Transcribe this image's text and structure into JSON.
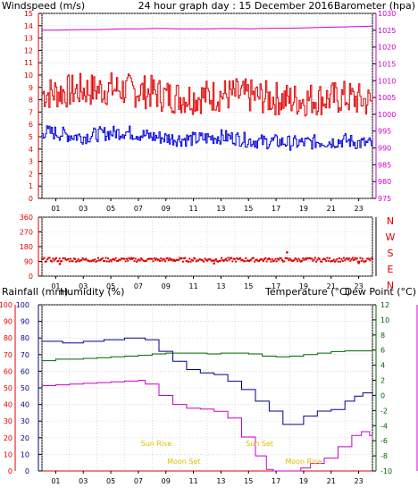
{
  "header": {
    "left_label": "Windspeed (m/s)",
    "center_label": "24 hour graph day : 15 December 2016",
    "right_label": "Barometer (hpa)"
  },
  "bottom_labels": {
    "rainfall": "Rainfall (mm)",
    "humidity": "Humidity (%)",
    "temperature": "Temperature (°C)",
    "dewpoint": "Dew Point (°C)"
  },
  "direction_letters": [
    "N",
    "W",
    "S",
    "E",
    "N"
  ],
  "events": [
    {
      "label": "Sun Rise",
      "hour": 8.3,
      "level": "upper"
    },
    {
      "label": "Sun Set",
      "hour": 15.8,
      "level": "upper"
    },
    {
      "label": "Moon Set",
      "hour": 10.3,
      "level": "lower"
    },
    {
      "label": "Moon Rise",
      "hour": 19.0,
      "level": "lower"
    }
  ],
  "colors": {
    "wind": "#e00000",
    "gust": "#e00000",
    "wind_avg": "#0000dd",
    "barometer": "#cc00cc",
    "direction": "#e00000",
    "rain": "#e00000",
    "humidity": "#00008b",
    "temperature": "#006400",
    "dewpoint": "#cc00cc",
    "events": "#e0c000",
    "axis": "#000000",
    "grid": "#c8c8c8"
  },
  "chart_data": [
    {
      "type": "line",
      "name": "wind-chart",
      "x_ticks": [
        "01",
        "03",
        "05",
        "07",
        "09",
        "11",
        "13",
        "15",
        "17",
        "19",
        "21",
        "23"
      ],
      "ylim_left": [
        0,
        15
      ],
      "yticks_left": [
        0,
        1,
        2,
        3,
        4,
        5,
        6,
        7,
        8,
        9,
        10,
        11,
        12,
        13,
        14,
        15
      ],
      "ylim_right": [
        975,
        1030
      ],
      "yticks_right": [
        975,
        980,
        985,
        990,
        995,
        1000,
        1005,
        1010,
        1015,
        1020,
        1025,
        1030
      ],
      "grid": true,
      "series": [
        {
          "axis": "left",
          "noisy": true,
          "base": [
            8.5,
            8.6,
            8.7,
            8.8,
            8.8,
            8.9,
            8.8,
            8.7,
            8.6,
            8.3,
            8.2,
            8.2,
            8.3,
            8.4,
            8.4,
            8.3,
            8.2,
            8.1,
            8.0,
            8.0,
            8.1,
            8.1,
            8.2,
            8.0,
            7.8
          ],
          "spread": 1.4
        },
        {
          "axis": "left",
          "noisy": true,
          "base": [
            5.4,
            5.3,
            5.1,
            5.0,
            5.2,
            5.3,
            5.4,
            5.2,
            5.0,
            4.9,
            4.8,
            4.8,
            4.9,
            5.0,
            4.9,
            4.7,
            4.6,
            4.6,
            4.5,
            4.5,
            4.6,
            4.6,
            4.7,
            4.5,
            4.4
          ],
          "spread": 0.6
        },
        {
          "axis": "right",
          "noisy": false,
          "base": [
            1025.0,
            1025.0,
            1025.1,
            1025.2,
            1025.2,
            1025.3,
            1025.4,
            1025.4,
            1025.5,
            1025.5,
            1025.4,
            1025.4,
            1025.4,
            1025.5,
            1025.5,
            1025.4,
            1025.5,
            1025.6,
            1025.6,
            1025.7,
            1025.8,
            1025.9,
            1026.0,
            1026.1,
            1026.2
          ],
          "spread": 0.1
        }
      ]
    },
    {
      "type": "scatter",
      "name": "direction-chart",
      "x_ticks": [
        "01",
        "03",
        "05",
        "07",
        "09",
        "11",
        "13",
        "15",
        "17",
        "19",
        "21",
        "23"
      ],
      "ylim": [
        0,
        360
      ],
      "yticks": [
        0,
        90,
        180,
        270,
        360
      ],
      "grid": true,
      "series": [
        {
          "base": 100,
          "spread": 12,
          "outliers": [
            {
              "hour": 1.3,
              "value": 75
            },
            {
              "hour": 12.5,
              "value": 78
            },
            {
              "hour": 17.8,
              "value": 145
            },
            {
              "hour": 23.0,
              "value": 80
            }
          ]
        }
      ]
    },
    {
      "type": "line",
      "name": "rain-humidity-temp-chart",
      "x_ticks": [
        "01",
        "03",
        "05",
        "07",
        "09",
        "11",
        "13",
        "15",
        "17",
        "19",
        "21",
        "23"
      ],
      "ylim_left": [
        0,
        100
      ],
      "yticks_left": [
        0,
        10,
        20,
        30,
        40,
        50,
        60,
        70,
        80,
        90,
        100
      ],
      "ylim_right": [
        -10,
        12
      ],
      "yticks_right": [
        -10,
        -8,
        -6,
        -4,
        -2,
        0,
        2,
        4,
        6,
        8,
        10,
        12
      ],
      "grid": true,
      "series": [
        {
          "axis": "left",
          "points": [
            [
              0,
              0
            ],
            [
              24,
              0
            ]
          ]
        },
        {
          "axis": "left",
          "points": [
            [
              0,
              78
            ],
            [
              1.5,
              77
            ],
            [
              3,
              78
            ],
            [
              4.5,
              79
            ],
            [
              6,
              80
            ],
            [
              7,
              80
            ],
            [
              7.5,
              79
            ],
            [
              8.5,
              72
            ],
            [
              9.5,
              66
            ],
            [
              10.5,
              61
            ],
            [
              11.5,
              59
            ],
            [
              12.5,
              58
            ],
            [
              13.5,
              54
            ],
            [
              14.5,
              49
            ],
            [
              15.5,
              42
            ],
            [
              16.5,
              36
            ],
            [
              17.5,
              28
            ],
            [
              18.2,
              28
            ],
            [
              19,
              33
            ],
            [
              20,
              36
            ],
            [
              21,
              37
            ],
            [
              22,
              42
            ],
            [
              22.7,
              45
            ],
            [
              23.3,
              47
            ],
            [
              24,
              43
            ]
          ]
        },
        {
          "axis": "right",
          "points": [
            [
              0,
              4.6
            ],
            [
              1,
              4.8
            ],
            [
              2,
              4.8
            ],
            [
              3,
              4.9
            ],
            [
              4,
              5.0
            ],
            [
              5,
              5.1
            ],
            [
              6,
              5.2
            ],
            [
              7,
              5.3
            ],
            [
              8,
              5.5
            ],
            [
              9,
              5.6
            ],
            [
              10,
              5.6
            ],
            [
              11,
              5.6
            ],
            [
              12,
              5.5
            ],
            [
              13,
              5.6
            ],
            [
              14,
              5.6
            ],
            [
              15,
              5.5
            ],
            [
              16,
              5.2
            ],
            [
              17,
              5.1
            ],
            [
              18,
              5.2
            ],
            [
              19,
              5.4
            ],
            [
              20,
              5.6
            ],
            [
              21,
              5.8
            ],
            [
              22,
              5.9
            ],
            [
              23,
              5.9
            ],
            [
              24,
              5.6
            ]
          ]
        },
        {
          "axis": "right",
          "points": [
            [
              0,
              1.3
            ],
            [
              1,
              1.4
            ],
            [
              2,
              1.5
            ],
            [
              3,
              1.6
            ],
            [
              4,
              1.7
            ],
            [
              5,
              1.8
            ],
            [
              6,
              1.9
            ],
            [
              7,
              2.0
            ],
            [
              7.5,
              1.5
            ],
            [
              8.5,
              0.0
            ],
            [
              9.5,
              -1.2
            ],
            [
              10.5,
              -1.7
            ],
            [
              11.5,
              -1.8
            ],
            [
              12.5,
              -2.1
            ],
            [
              13.5,
              -3.0
            ],
            [
              14.5,
              -5.5
            ],
            [
              15.5,
              -8.0
            ],
            [
              16.3,
              -9.8
            ],
            [
              16.8,
              -10.0
            ],
            [
              18.0,
              -10.0
            ],
            [
              18.8,
              -9.6
            ],
            [
              19.5,
              -9.0
            ],
            [
              20.5,
              -8.3
            ],
            [
              21.5,
              -6.8
            ],
            [
              22.5,
              -5.3
            ],
            [
              23.2,
              -4.8
            ],
            [
              23.8,
              -5.3
            ],
            [
              24,
              -5.9
            ]
          ]
        }
      ]
    }
  ]
}
